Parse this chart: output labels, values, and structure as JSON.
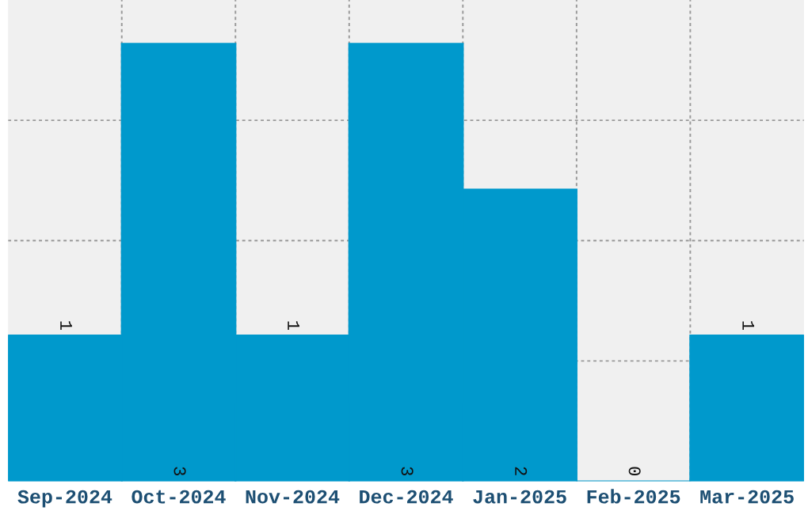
{
  "chart_data": {
    "type": "bar",
    "categories": [
      "Sep-2024",
      "Oct-2024",
      "Nov-2024",
      "Dec-2024",
      "Jan-2025",
      "Feb-2025",
      "Mar-2025"
    ],
    "values": [
      1,
      3,
      1,
      3,
      2,
      0,
      1
    ],
    "color": "#0099cc",
    "ylim": [
      0,
      3.3
    ],
    "yticks": [
      {
        "value": 0.825,
        "label": null
      },
      {
        "value": 1.65,
        "label": null
      },
      {
        "value": 2.475,
        "label": null
      }
    ],
    "tick_labels": "x",
    "grid": true,
    "data_labels": true
  }
}
